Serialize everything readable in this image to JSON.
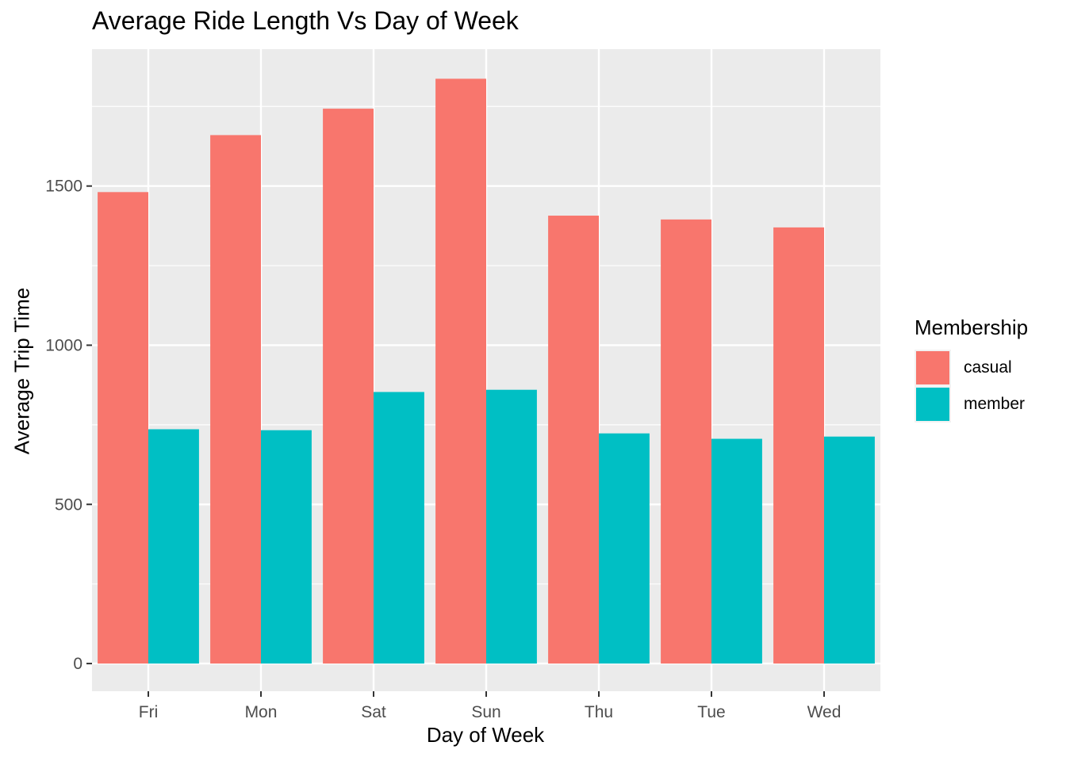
{
  "chart_data": {
    "type": "bar",
    "title": "Average Ride Length Vs Day of Week",
    "xlabel": "Day of Week",
    "ylabel": "Average Trip Time",
    "categories": [
      "Fri",
      "Mon",
      "Sat",
      "Sun",
      "Thu",
      "Tue",
      "Wed"
    ],
    "series": [
      {
        "name": "casual",
        "color": "#F8766D",
        "values": [
          1481,
          1660,
          1743,
          1837,
          1407,
          1395,
          1370
        ]
      },
      {
        "name": "member",
        "color": "#00BFC4",
        "values": [
          736,
          733,
          853,
          860,
          723,
          706,
          713
        ]
      }
    ],
    "ylim": [
      -87,
      1930
    ],
    "yticks": [
      0,
      500,
      1000,
      1500
    ],
    "ytick_labels": [
      "0",
      "500",
      "1000",
      "1500"
    ],
    "grid": true,
    "legend": {
      "title": "Membership",
      "position": "right"
    }
  }
}
